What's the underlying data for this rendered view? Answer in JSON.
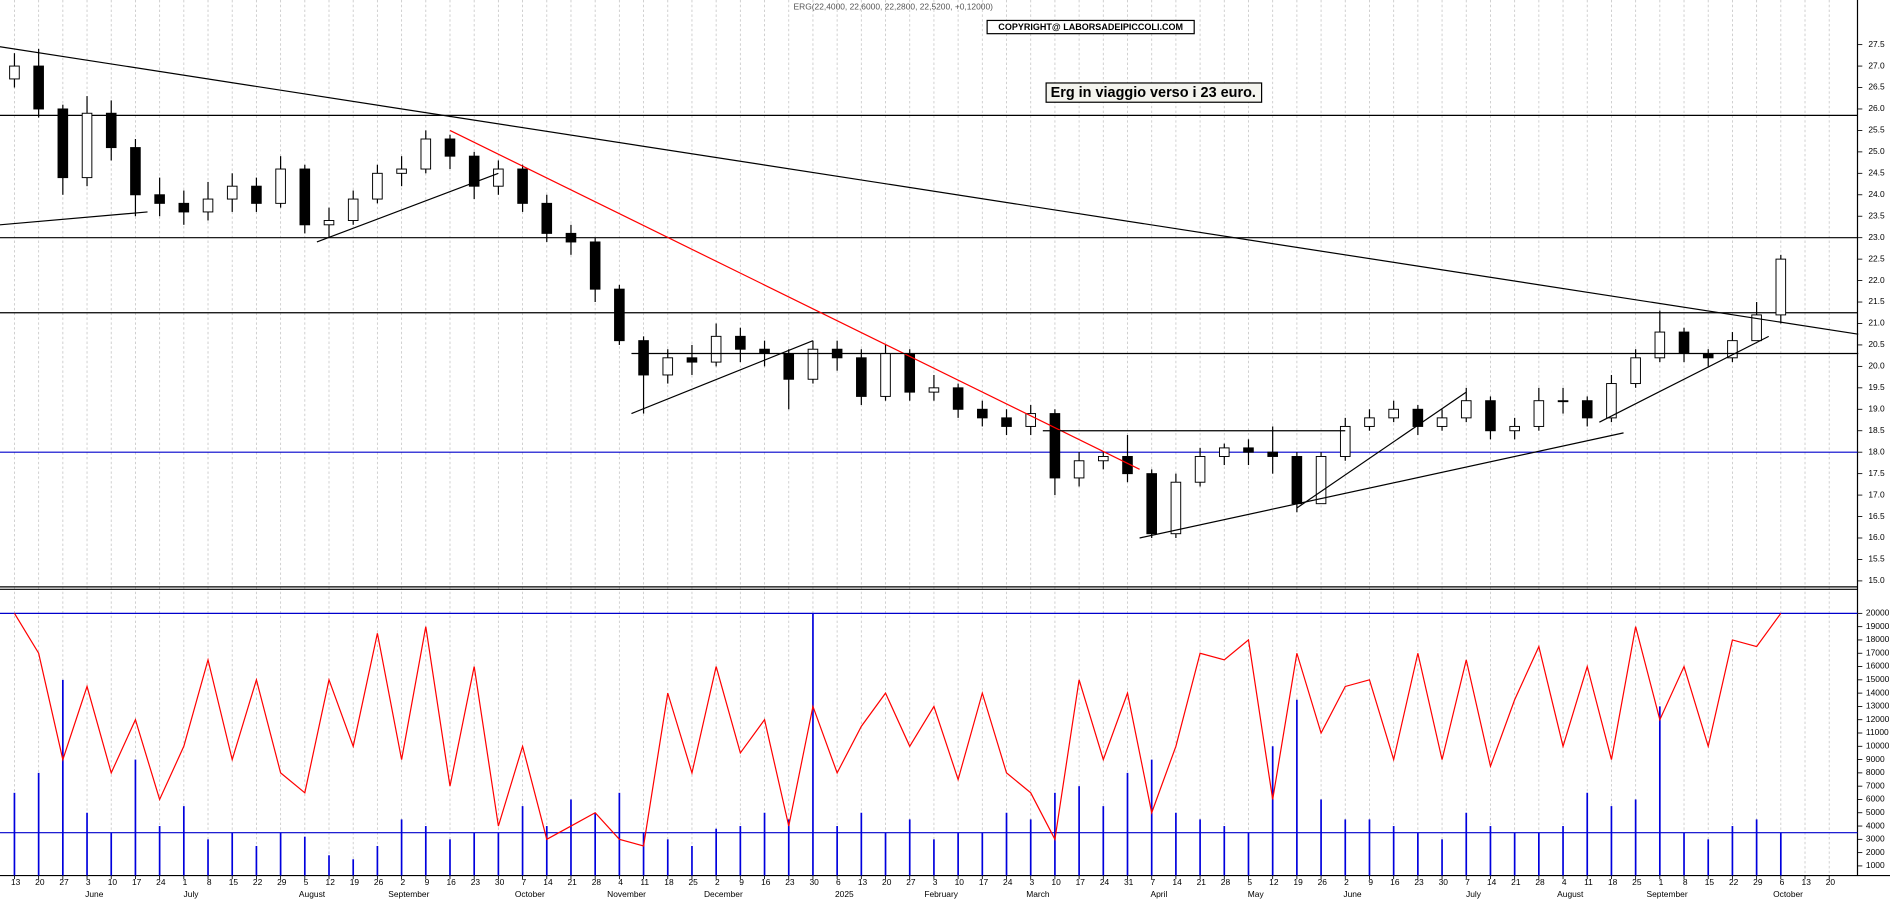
{
  "chart_data": [
    {
      "type": "candlestick",
      "title": "ERG(22,4000, 22,6000, 22,2800, 22,5200, +0,12000)",
      "copyright": "COPYRIGHT@ LABORSADEIPICCOLI.COM",
      "annotation": "Erg in viaggio verso i 23 euro.",
      "open": [
        26.7,
        27.0,
        26.0,
        24.4,
        25.9,
        25.1,
        24.0,
        23.8,
        23.6,
        23.9,
        24.2,
        23.8,
        24.6,
        23.3,
        23.4,
        23.9,
        24.5,
        24.6,
        25.3,
        24.9,
        24.2,
        24.6,
        23.8,
        23.1,
        22.9,
        21.8,
        20.6,
        19.8,
        20.2,
        20.1,
        20.7,
        20.4,
        20.3,
        19.7,
        20.4,
        20.2,
        19.3,
        20.3,
        19.4,
        19.5,
        19.0,
        18.8,
        18.6,
        18.9,
        17.4,
        17.8,
        17.9,
        17.5,
        16.1,
        17.3,
        17.9,
        18.1,
        18.0,
        17.9,
        16.8,
        17.9,
        18.6,
        18.8,
        19.0,
        18.6,
        18.8,
        19.2,
        18.5,
        18.6,
        19.2,
        19.2,
        18.8,
        19.6,
        20.2,
        20.8,
        20.3,
        20.2,
        20.6,
        21.2,
        null,
        null
      ],
      "high": [
        27.3,
        27.4,
        26.1,
        26.3,
        26.2,
        25.3,
        24.4,
        24.1,
        24.3,
        24.5,
        24.4,
        24.9,
        24.7,
        23.7,
        24.1,
        24.7,
        24.9,
        25.5,
        25.4,
        25.0,
        24.8,
        24.7,
        24.0,
        23.3,
        23.0,
        21.9,
        20.7,
        20.4,
        20.5,
        21.0,
        20.9,
        20.6,
        20.4,
        20.6,
        20.6,
        20.4,
        20.5,
        20.4,
        19.8,
        19.6,
        19.2,
        19.0,
        19.1,
        19.0,
        18.0,
        18.0,
        18.4,
        17.6,
        17.5,
        18.1,
        18.2,
        18.3,
        18.6,
        18.0,
        18.0,
        18.8,
        19.0,
        19.2,
        19.1,
        19.0,
        19.5,
        19.3,
        18.8,
        19.5,
        19.5,
        19.3,
        19.8,
        20.4,
        21.3,
        20.9,
        20.4,
        20.8,
        21.5,
        22.6,
        null,
        null
      ],
      "low": [
        26.5,
        25.8,
        24.0,
        24.2,
        24.8,
        23.5,
        23.5,
        23.3,
        23.4,
        23.6,
        23.6,
        23.7,
        23.1,
        23.0,
        23.3,
        23.8,
        24.2,
        24.5,
        24.6,
        23.9,
        24.0,
        23.6,
        22.9,
        22.6,
        21.5,
        20.5,
        18.9,
        19.6,
        19.8,
        20.0,
        20.1,
        20.0,
        19.0,
        19.6,
        19.9,
        19.1,
        19.2,
        19.2,
        19.2,
        18.8,
        18.6,
        18.4,
        18.4,
        17.0,
        17.2,
        17.6,
        17.3,
        16.0,
        16.0,
        17.2,
        17.7,
        17.7,
        17.5,
        16.6,
        16.8,
        17.8,
        18.5,
        18.7,
        18.4,
        18.5,
        18.7,
        18.3,
        18.3,
        18.5,
        18.9,
        18.6,
        18.7,
        19.5,
        20.1,
        20.1,
        20.0,
        20.1,
        20.7,
        21.0,
        null,
        null
      ],
      "close": [
        27.0,
        26.0,
        24.4,
        25.9,
        25.1,
        24.0,
        23.8,
        23.6,
        23.9,
        24.2,
        23.8,
        24.6,
        23.3,
        23.4,
        23.9,
        24.5,
        24.6,
        25.3,
        24.9,
        24.2,
        24.6,
        23.8,
        23.1,
        22.9,
        21.8,
        20.6,
        19.8,
        20.2,
        20.1,
        20.7,
        20.4,
        20.3,
        19.7,
        20.4,
        20.2,
        19.3,
        20.3,
        19.4,
        19.5,
        19.0,
        18.8,
        18.6,
        18.9,
        17.4,
        17.8,
        17.9,
        17.5,
        16.1,
        17.3,
        17.9,
        18.1,
        18.0,
        17.9,
        16.8,
        17.9,
        18.6,
        18.8,
        19.0,
        18.6,
        18.8,
        19.2,
        18.5,
        18.6,
        19.2,
        19.2,
        18.8,
        19.6,
        20.2,
        20.8,
        20.3,
        20.2,
        20.6,
        21.2,
        22.5,
        null,
        null
      ],
      "ylim": [
        14.86,
        28.54
      ],
      "yticks": [
        {
          "value": 15,
          "label": "15.0"
        },
        {
          "value": 15.5,
          "label": "15.5"
        },
        {
          "value": 16,
          "label": "16.0"
        },
        {
          "value": 16.5,
          "label": "16.5"
        },
        {
          "value": 17,
          "label": "17.0"
        },
        {
          "value": 17.5,
          "label": "17.5"
        },
        {
          "value": 18,
          "label": "18.0"
        },
        {
          "value": 18.5,
          "label": "18.5"
        },
        {
          "value": 19,
          "label": "19.0"
        },
        {
          "value": 19.5,
          "label": "19.5"
        },
        {
          "value": 20,
          "label": "20.0"
        },
        {
          "value": 20.5,
          "label": "20.5"
        },
        {
          "value": 21,
          "label": "21.0"
        },
        {
          "value": 21.5,
          "label": "21.5"
        },
        {
          "value": 22,
          "label": "22.0"
        },
        {
          "value": 22.5,
          "label": "22.5"
        },
        {
          "value": 23,
          "label": "23.0"
        },
        {
          "value": 23.5,
          "label": "23.5"
        },
        {
          "value": 24,
          "label": "24.0"
        },
        {
          "value": 24.5,
          "label": "24.5"
        },
        {
          "value": 25,
          "label": "25.0"
        },
        {
          "value": 25.5,
          "label": "25.5"
        },
        {
          "value": 26,
          "label": "26.0"
        },
        {
          "value": 26.5,
          "label": "26.5"
        },
        {
          "value": 27,
          "label": "27.0"
        },
        {
          "value": 27.5,
          "label": "27.5"
        }
      ],
      "levels": [
        {
          "value": 25.85,
          "color": "#000000"
        },
        {
          "value": 23.0,
          "color": "#000000"
        },
        {
          "value": 21.25,
          "color": "#000000"
        },
        {
          "value": 18.0,
          "color": "#0000cc"
        }
      ],
      "trendlines": [
        {
          "from": [
            -0.6,
            27.45
          ],
          "to": [
            76.2,
            20.75
          ],
          "color": "#000000"
        },
        {
          "from": [
            18,
            25.5
          ],
          "to": [
            46.5,
            17.6
          ],
          "color": "#ff0000"
        },
        {
          "from": [
            -0.6,
            23.3
          ],
          "to": [
            5.5,
            23.6
          ],
          "color": "#000000"
        },
        {
          "from": [
            12.5,
            22.9
          ],
          "to": [
            20,
            24.5
          ],
          "color": "#000000"
        },
        {
          "from": [
            25.5,
            18.9
          ],
          "to": [
            33,
            20.6
          ],
          "color": "#000000"
        },
        {
          "from": [
            46.5,
            16.0
          ],
          "to": [
            66.5,
            18.45
          ],
          "color": "#000000"
        },
        {
          "from": [
            53,
            16.7
          ],
          "to": [
            60,
            19.4
          ],
          "color": "#000000"
        },
        {
          "from": [
            65.5,
            18.7
          ],
          "to": [
            72.5,
            20.7
          ],
          "color": "#000000"
        },
        {
          "from": [
            25.5,
            20.3
          ],
          "to": [
            76.2,
            20.3
          ],
          "color": "#000000"
        },
        {
          "from": [
            42.5,
            18.5
          ],
          "to": [
            55,
            18.5
          ],
          "color": "#000000"
        }
      ]
    },
    {
      "type": "bar",
      "categories": [
        "13",
        "20",
        "27",
        "3",
        "10",
        "17",
        "24",
        "1",
        "8",
        "15",
        "22",
        "29",
        "5",
        "12",
        "19",
        "26",
        "2",
        "9",
        "16",
        "23",
        "30",
        "7",
        "14",
        "21",
        "28",
        "4",
        "11",
        "18",
        "25",
        "2",
        "9",
        "16",
        "23",
        "30",
        "6",
        "13",
        "20",
        "27",
        "3",
        "10",
        "17",
        "24",
        "3",
        "10",
        "17",
        "24",
        "31",
        "7",
        "14",
        "21",
        "28",
        "5",
        "12",
        "19",
        "26",
        "2",
        "9",
        "16",
        "23",
        "30",
        "7",
        "14",
        "21",
        "28",
        "4",
        "11",
        "18",
        "25",
        "1",
        "8",
        "15",
        "22",
        "29",
        "6",
        "13",
        "20"
      ],
      "month_labels": [
        null,
        null,
        null,
        "June",
        null,
        null,
        null,
        "July",
        null,
        null,
        null,
        null,
        "August",
        null,
        null,
        null,
        "September",
        null,
        null,
        null,
        null,
        "October",
        null,
        null,
        null,
        "November",
        null,
        null,
        null,
        "December",
        null,
        null,
        null,
        null,
        "2025",
        null,
        null,
        null,
        "February",
        null,
        null,
        null,
        "March",
        null,
        null,
        null,
        null,
        "April",
        null,
        null,
        null,
        "May",
        null,
        null,
        null,
        "June",
        null,
        null,
        null,
        null,
        "July",
        null,
        null,
        null,
        "August",
        null,
        null,
        null,
        "September",
        null,
        null,
        null,
        null,
        "October",
        null,
        null
      ],
      "series": [
        {
          "color": "#0000dd",
          "values": [
            6500,
            8000,
            15000,
            5000,
            3500,
            9000,
            4000,
            5500,
            3000,
            3500,
            2500,
            3500,
            3200,
            1800,
            1500,
            2500,
            4500,
            4000,
            3000,
            3500,
            3500,
            5500,
            4000,
            6000,
            5000,
            6500,
            3500,
            3000,
            2500,
            3800,
            4000,
            5000,
            4500,
            20000,
            4000,
            5000,
            3500,
            4500,
            3000,
            3500,
            3500,
            5000,
            4500,
            6500,
            7000,
            5500,
            8000,
            9000,
            5000,
            4500,
            4000,
            3500,
            10000,
            13500,
            6000,
            4500,
            4500,
            4000,
            3500,
            3000,
            5000,
            4000,
            3500,
            3500,
            4000,
            6500,
            5500,
            6000,
            13000,
            3500,
            3000,
            4000,
            4500,
            3500,
            null,
            null
          ]
        },
        {
          "type": "line",
          "color": "#ff0000",
          "values": [
            20000,
            17000,
            9000,
            14500,
            8000,
            12000,
            6000,
            10000,
            16500,
            9000,
            15000,
            8000,
            6500,
            15000,
            10000,
            18500,
            9000,
            19000,
            7000,
            16000,
            4000,
            10000,
            3000,
            4000,
            5000,
            3000,
            2500,
            14000,
            8000,
            16000,
            9500,
            12000,
            4000,
            13000,
            8000,
            11500,
            14000,
            10000,
            13000,
            7500,
            14000,
            8000,
            6500,
            3000,
            15000,
            9000,
            14000,
            5000,
            10000,
            17000,
            16500,
            18000,
            6000,
            17000,
            11000,
            14500,
            15000,
            9000,
            17000,
            9000,
            16500,
            8500,
            13500,
            17500,
            10000,
            16000,
            9000,
            19000,
            12000,
            16000,
            10000,
            18000,
            17500,
            20000,
            null,
            null
          ]
        }
      ],
      "ylim": [
        276,
        21810
      ],
      "yticks": [
        1000,
        2000,
        3000,
        4000,
        5000,
        6000,
        7000,
        8000,
        9000,
        10000,
        11000,
        12000,
        13000,
        14000,
        15000,
        16000,
        17000,
        18000,
        19000,
        20000
      ],
      "levels": [
        {
          "value": 20000,
          "color": "#0000cc"
        },
        {
          "value": 3500,
          "color": "#0000cc"
        }
      ]
    }
  ]
}
